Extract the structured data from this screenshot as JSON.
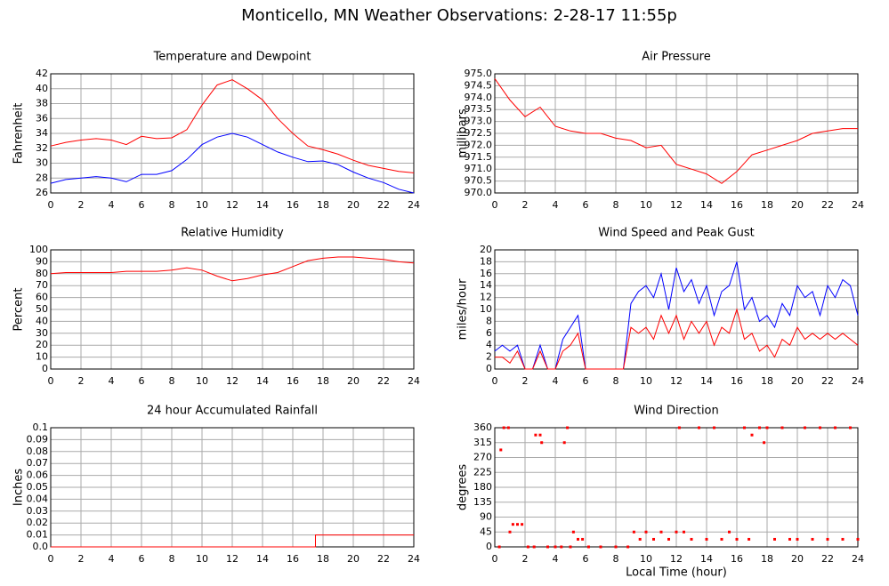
{
  "title": "Monticello, MN Weather Observations: 2-28-17 11:55p",
  "chart_data": [
    {
      "type": "line",
      "title": "Temperature and Dewpoint",
      "ylabel": "Fahrenheit",
      "x": [
        0,
        1,
        2,
        3,
        4,
        5,
        6,
        7,
        8,
        9,
        10,
        11,
        12,
        13,
        14,
        15,
        16,
        17,
        18,
        19,
        20,
        21,
        22,
        23,
        24
      ],
      "series": [
        {
          "color": "#ff0000",
          "values": [
            32.3,
            32.8,
            33.1,
            33.3,
            33.1,
            32.5,
            33.6,
            33.3,
            33.4,
            34.5,
            37.8,
            40.5,
            41.2,
            40.0,
            38.5,
            36.0,
            34.0,
            32.3,
            31.8,
            31.2,
            30.4,
            29.7,
            29.3,
            28.9,
            28.7
          ]
        },
        {
          "color": "#0000ff",
          "values": [
            27.3,
            27.8,
            28.0,
            28.2,
            28.0,
            27.5,
            28.5,
            28.5,
            29.0,
            30.5,
            32.5,
            33.5,
            34.0,
            33.5,
            32.5,
            31.5,
            30.8,
            30.2,
            30.3,
            29.8,
            28.8,
            28.0,
            27.4,
            26.5,
            26.0
          ]
        }
      ],
      "xlim": [
        0,
        24
      ],
      "xticks": [
        0,
        2,
        4,
        6,
        8,
        10,
        12,
        14,
        16,
        18,
        20,
        22,
        24
      ],
      "ylim": [
        26,
        42
      ],
      "yticks": [
        26,
        28,
        30,
        32,
        34,
        36,
        38,
        40,
        42
      ],
      "grid": true
    },
    {
      "type": "line",
      "title": "Air Pressure",
      "ylabel": "millibars",
      "x": [
        0,
        1,
        2,
        3,
        4,
        5,
        6,
        7,
        8,
        9,
        10,
        11,
        12,
        13,
        14,
        15,
        16,
        17,
        18,
        19,
        20,
        21,
        22,
        23,
        24
      ],
      "series": [
        {
          "color": "#ff0000",
          "values": [
            974.8,
            973.9,
            973.2,
            973.6,
            972.8,
            972.6,
            972.5,
            972.5,
            972.3,
            972.2,
            971.9,
            972.0,
            971.2,
            971.0,
            970.8,
            970.4,
            970.9,
            971.6,
            971.8,
            972.0,
            972.2,
            972.5,
            972.6,
            972.7,
            972.7
          ]
        }
      ],
      "xlim": [
        0,
        24
      ],
      "xticks": [
        0,
        2,
        4,
        6,
        8,
        10,
        12,
        14,
        16,
        18,
        20,
        22,
        24
      ],
      "ylim": [
        970,
        975
      ],
      "yticks": [
        {
          "value": 970,
          "label": "970.0"
        },
        970.5,
        {
          "value": 971,
          "label": "971.0"
        },
        971.5,
        {
          "value": 972,
          "label": "972.0"
        },
        972.5,
        {
          "value": 973,
          "label": "973.0"
        },
        973.5,
        {
          "value": 974,
          "label": "974.0"
        },
        974.5,
        {
          "value": 975,
          "label": "975.0"
        }
      ],
      "grid": true
    },
    {
      "type": "line",
      "title": "Relative Humidity",
      "ylabel": "Percent",
      "x": [
        0,
        1,
        2,
        3,
        4,
        5,
        6,
        7,
        8,
        9,
        10,
        11,
        12,
        13,
        14,
        15,
        16,
        17,
        18,
        19,
        20,
        21,
        22,
        23,
        24
      ],
      "series": [
        {
          "color": "#ff0000",
          "values": [
            80,
            81,
            81,
            81,
            81,
            82,
            82,
            82,
            83,
            85,
            83,
            78,
            74,
            76,
            79,
            81,
            86,
            91,
            93,
            94,
            94,
            93,
            92,
            90,
            89
          ]
        }
      ],
      "xlim": [
        0,
        24
      ],
      "xticks": [
        0,
        2,
        4,
        6,
        8,
        10,
        12,
        14,
        16,
        18,
        20,
        22,
        24
      ],
      "ylim": [
        0,
        100
      ],
      "yticks": [
        0,
        10,
        20,
        30,
        40,
        50,
        60,
        70,
        80,
        90,
        100
      ],
      "grid": true
    },
    {
      "type": "line",
      "title": "Wind Speed and Peak Gust",
      "ylabel": "miles/hour",
      "x": [
        0,
        0.5,
        1,
        1.5,
        2,
        2.5,
        3,
        3.5,
        4,
        4.5,
        5,
        5.5,
        6,
        6.5,
        7,
        7.5,
        8,
        8.5,
        9,
        9.5,
        10,
        10.5,
        11,
        11.5,
        12,
        12.5,
        13,
        13.5,
        14,
        14.5,
        15,
        15.5,
        16,
        16.5,
        17,
        17.5,
        18,
        18.5,
        19,
        19.5,
        20,
        20.5,
        21,
        21.5,
        22,
        22.5,
        23,
        23.5,
        24
      ],
      "series": [
        {
          "color": "#0000ff",
          "values": [
            3,
            4,
            3,
            4,
            0,
            0,
            4,
            0,
            0,
            5,
            7,
            9,
            0,
            0,
            0,
            0,
            0,
            0,
            11,
            13,
            14,
            12,
            16,
            10,
            17,
            13,
            15,
            11,
            14,
            9,
            13,
            14,
            18,
            10,
            12,
            8,
            9,
            7,
            11,
            9,
            14,
            12,
            13,
            9,
            14,
            12,
            15,
            14,
            9
          ]
        },
        {
          "color": "#ff0000",
          "values": [
            2,
            2,
            1,
            3,
            0,
            0,
            3,
            0,
            0,
            3,
            4,
            6,
            0,
            0,
            0,
            0,
            0,
            0,
            7,
            6,
            7,
            5,
            9,
            6,
            9,
            5,
            8,
            6,
            8,
            4,
            7,
            6,
            10,
            5,
            6,
            3,
            4,
            2,
            5,
            4,
            7,
            5,
            6,
            5,
            6,
            5,
            6,
            5,
            4
          ]
        }
      ],
      "xlim": [
        0,
        24
      ],
      "xticks": [
        0,
        2,
        4,
        6,
        8,
        10,
        12,
        14,
        16,
        18,
        20,
        22,
        24
      ],
      "ylim": [
        0,
        20
      ],
      "yticks": [
        0,
        2,
        4,
        6,
        8,
        10,
        12,
        14,
        16,
        18,
        20
      ],
      "grid": true
    },
    {
      "type": "line",
      "title": "24 hour Accumulated Rainfall",
      "ylabel": "Inches",
      "x": [
        0,
        17.5,
        17.5,
        24
      ],
      "series": [
        {
          "color": "#ff0000",
          "values": [
            0,
            0,
            0.01,
            0.01
          ]
        }
      ],
      "xlim": [
        0,
        24
      ],
      "xticks": [
        0,
        2,
        4,
        6,
        8,
        10,
        12,
        14,
        16,
        18,
        20,
        22,
        24
      ],
      "ylim": [
        0,
        0.1
      ],
      "yticks": [
        {
          "value": 0,
          "label": "0.0"
        },
        0.01,
        0.02,
        0.03,
        0.04,
        0.05,
        0.06,
        0.07,
        0.08,
        0.09,
        0.1
      ],
      "grid": true
    },
    {
      "type": "scatter",
      "title": "Wind Direction",
      "ylabel": "degrees",
      "xlabel": "Local Time (hour)",
      "color": "#ff0000",
      "x": [
        0.3,
        0.4,
        0.6,
        0.9,
        1.0,
        1.2,
        1.5,
        1.8,
        2.2,
        2.6,
        2.7,
        3.0,
        3.1,
        3.5,
        4.0,
        4.4,
        4.6,
        4.8,
        5.0,
        5.2,
        5.5,
        5.8,
        6.2,
        7,
        8,
        8.8,
        9.2,
        9.6,
        10,
        10.5,
        11,
        11.5,
        12,
        12.2,
        12.5,
        13,
        13.5,
        14,
        14.5,
        15,
        15.5,
        16,
        16.5,
        16.8,
        17,
        17.5,
        17.8,
        18,
        18.5,
        19,
        19.5,
        20,
        20.5,
        21,
        21.5,
        22,
        22.5,
        23,
        23.5,
        24
      ],
      "values": [
        0,
        293,
        360,
        360,
        45,
        68,
        68,
        68,
        0,
        0,
        338,
        338,
        315,
        0,
        0,
        0,
        315,
        360,
        0,
        45,
        23,
        23,
        0,
        0,
        0,
        0,
        45,
        23,
        45,
        23,
        45,
        23,
        45,
        360,
        45,
        23,
        360,
        23,
        360,
        23,
        45,
        23,
        360,
        23,
        338,
        360,
        315,
        360,
        23,
        360,
        23,
        23,
        360,
        23,
        360,
        23,
        360,
        23,
        360,
        23
      ],
      "xlim": [
        0,
        24
      ],
      "xticks": [
        0,
        2,
        4,
        6,
        8,
        10,
        12,
        14,
        16,
        18,
        20,
        22,
        24
      ],
      "ylim": [
        0,
        360
      ],
      "yticks": [
        0,
        45,
        90,
        135,
        180,
        225,
        270,
        315,
        360
      ],
      "grid": true
    }
  ]
}
